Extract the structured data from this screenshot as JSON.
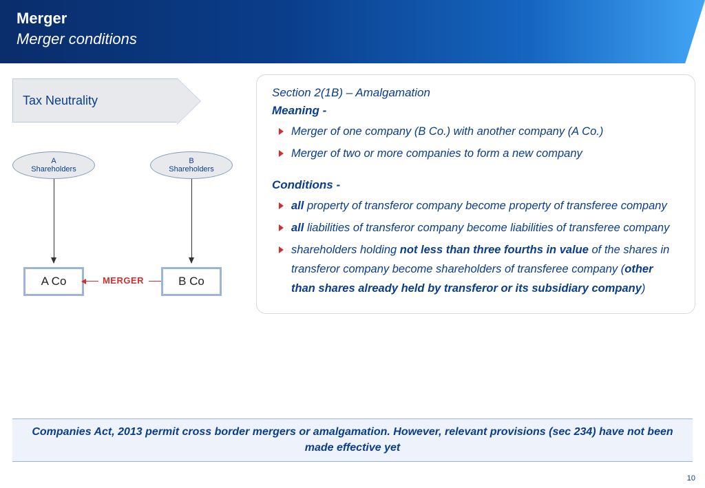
{
  "header": {
    "title": "Merger",
    "subtitle": "Merger conditions"
  },
  "tax_box": "Tax Neutrality",
  "diagram": {
    "ellipse_a_line1": "A",
    "ellipse_a_line2": "Shareholders",
    "ellipse_b_line1": "B",
    "ellipse_b_line2": "Shareholders",
    "box_a": "A Co",
    "box_b": "B Co",
    "merger_label": "MERGER"
  },
  "info": {
    "section_title": "Section 2(1B) – Amalgamation",
    "meaning_heading": "Meaning -",
    "meaning_items": {
      "0": "Merger of one company (B Co.) with another company (A Co.)",
      "1": "Merger of two or more companies to form a new company"
    },
    "conditions_heading": "Conditions -",
    "cond": {
      "0": {
        "bold": "all",
        "rest": " property of transferor company become property of transferee company"
      },
      "1": {
        "bold": "all",
        "rest": " liabilities of transferor company become liabilities of transferee company"
      },
      "2": {
        "pre": "shareholders holding ",
        "bold1": "not less than three fourths in value",
        "mid": " of the shares in transferor company become shareholders of transferee company (",
        "bold2": "other than shares already held by transferor or its subsidiary company",
        "post": ")"
      }
    }
  },
  "footer_note": "Companies Act, 2013 permit cross border mergers or amalgamation. However, relevant provisions (sec 234) have not been made effective yet",
  "page_number": "10",
  "colors": {
    "primary_text": "#0a3d8a",
    "accent_red": "#d32f2f",
    "panel_border": "#d5d9e0",
    "box_border": "#9db4d6",
    "footer_bg": "#eef3fb"
  }
}
